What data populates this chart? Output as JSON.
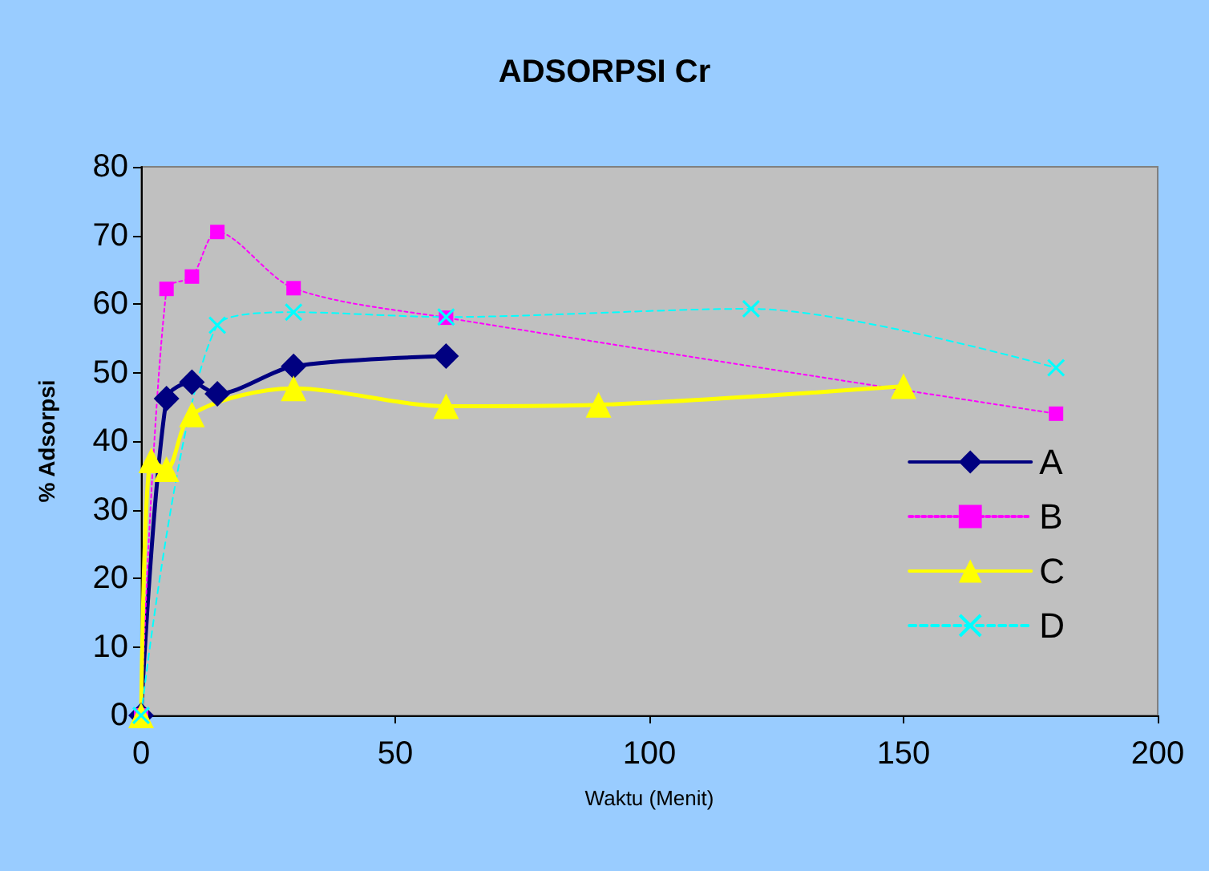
{
  "chart_data": {
    "type": "line",
    "title": "ADSORPSI Cr",
    "xlabel": "Waktu (Menit)",
    "ylabel": "% Adsorpsi",
    "xlim": [
      0,
      200
    ],
    "xticks": [
      0,
      50,
      100,
      150,
      200
    ],
    "ylim": [
      0,
      80
    ],
    "yticks": [
      0,
      10,
      20,
      30,
      40,
      50,
      60,
      70,
      80
    ],
    "grid": false,
    "legend": "right",
    "series": [
      {
        "name": "A",
        "color": "#000080",
        "marker": "diamond",
        "line_style": "solid",
        "x": [
          0,
          5,
          10,
          15,
          30,
          60
        ],
        "values": [
          0,
          46.2,
          48.6,
          46.9,
          50.9,
          52.4
        ]
      },
      {
        "name": "B",
        "color": "#ff00ff",
        "marker": "square",
        "line_style": "dotted",
        "x": [
          0,
          5,
          10,
          15,
          30,
          60,
          180
        ],
        "values": [
          0,
          62.2,
          64,
          70.5,
          62.3,
          58,
          44
        ]
      },
      {
        "name": "C",
        "color": "#ffff00",
        "marker": "triangle",
        "line_style": "solid",
        "x": [
          0,
          2,
          5,
          10,
          30,
          60,
          90,
          150
        ],
        "values": [
          0,
          37.2,
          35.9,
          43.9,
          47.7,
          45.1,
          45.3,
          48
        ]
      },
      {
        "name": "D",
        "color": "#00ffff",
        "marker": "cross",
        "line_style": "dashed",
        "x": [
          0,
          15,
          30,
          60,
          120,
          180
        ],
        "values": [
          0,
          56.9,
          58.8,
          58.1,
          59.3,
          50.7
        ]
      }
    ]
  }
}
